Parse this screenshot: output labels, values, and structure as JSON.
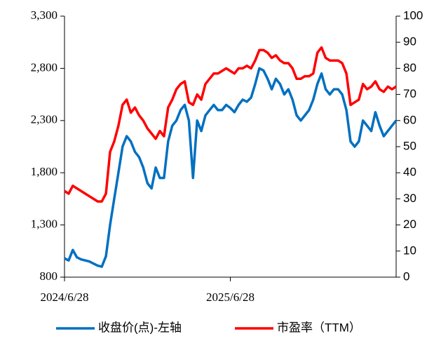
{
  "chart_data": {
    "type": "line",
    "categories": [
      "2024/6/28",
      null,
      null,
      null,
      null,
      null,
      null,
      null,
      null,
      null,
      null,
      null,
      null,
      null,
      null,
      null,
      null,
      null,
      null,
      null,
      null,
      null,
      null,
      null,
      null,
      null,
      null,
      null,
      null,
      null,
      null,
      null,
      null,
      null,
      null,
      null,
      null,
      null,
      null,
      null,
      "2025/6/28",
      null,
      null,
      null,
      null,
      null,
      null,
      null,
      null,
      null,
      null,
      null,
      null,
      null,
      null,
      null,
      null,
      null,
      null,
      null,
      null,
      null,
      null,
      null,
      null,
      null,
      null,
      null,
      null,
      null,
      null,
      null,
      null,
      null,
      null,
      null,
      null,
      null,
      null,
      null,
      null
    ],
    "series": [
      {
        "name": "收盘价(点)-左轴",
        "color": "#0070c0",
        "axis": "y",
        "values": [
          980,
          960,
          1060,
          990,
          970,
          960,
          950,
          930,
          910,
          900,
          1000,
          1300,
          1550,
          1800,
          2050,
          2150,
          2100,
          2000,
          1950,
          1850,
          1700,
          1650,
          1850,
          1750,
          1750,
          2100,
          2250,
          2300,
          2400,
          2450,
          2300,
          1750,
          2300,
          2200,
          2350,
          2400,
          2450,
          2400,
          2400,
          2450,
          2420,
          2380,
          2450,
          2500,
          2480,
          2520,
          2650,
          2800,
          2780,
          2700,
          2600,
          2700,
          2650,
          2550,
          2600,
          2500,
          2350,
          2300,
          2350,
          2400,
          2500,
          2650,
          2750,
          2600,
          2550,
          2600,
          2600,
          2550,
          2400,
          2100,
          2050,
          2100,
          2300,
          2250,
          2200,
          2380,
          2250,
          2150,
          2200,
          2250,
          2300
        ]
      },
      {
        "name": "市盈率（TTM）",
        "color": "#ff0000",
        "axis": "y2",
        "values": [
          33,
          32,
          35,
          34,
          33,
          32,
          31,
          30,
          29,
          29,
          32,
          48,
          52,
          58,
          66,
          68,
          63,
          65,
          62,
          60,
          57,
          55,
          53,
          56,
          54,
          65,
          68,
          72,
          74,
          75,
          67,
          66,
          70,
          68,
          74,
          76,
          78,
          78,
          79,
          80,
          79,
          78,
          80,
          80,
          81,
          80,
          83,
          87,
          87,
          86,
          84,
          85,
          83,
          82,
          82,
          80,
          76,
          76,
          77,
          77,
          78,
          86,
          88,
          84,
          83,
          83,
          83,
          82,
          78,
          66,
          67,
          68,
          74,
          72,
          73,
          75,
          72,
          71,
          73,
          72,
          73
        ]
      }
    ],
    "ylim": [
      800,
      3300
    ],
    "yticks": [
      800,
      {
        "value": 1300,
        "label": "1,300"
      },
      {
        "value": 1800,
        "label": "1,800"
      },
      {
        "value": 2300,
        "label": "2,300"
      },
      {
        "value": 2800,
        "label": "2,800"
      },
      {
        "value": 3300,
        "label": "3,300"
      }
    ],
    "y2lim": [
      0,
      100
    ],
    "y2ticks": [
      0,
      10,
      20,
      30,
      40,
      50,
      60,
      70,
      80,
      90,
      100
    ],
    "grid": false,
    "legend": "bottom"
  }
}
